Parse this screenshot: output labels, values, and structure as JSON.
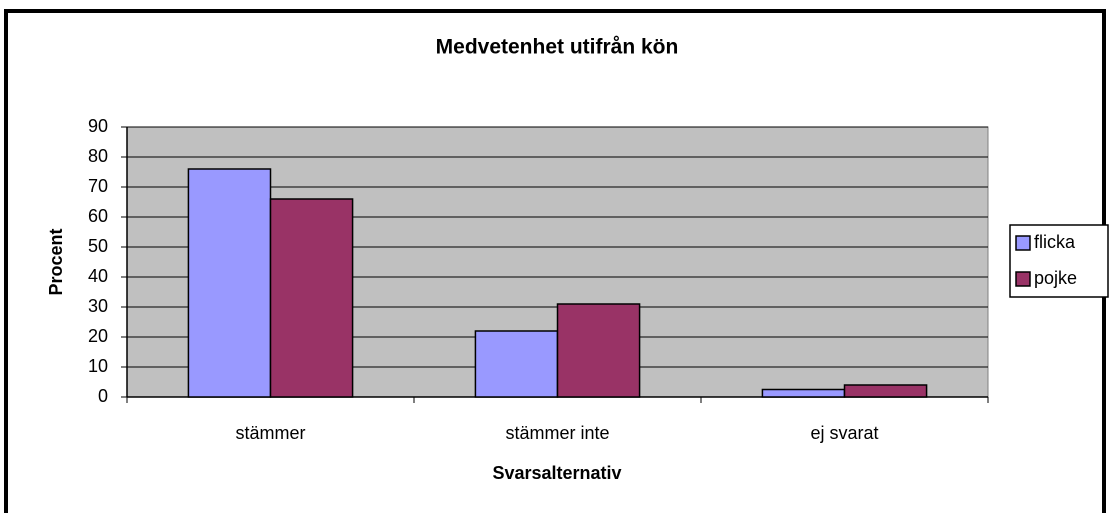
{
  "chart_data": {
    "type": "bar",
    "title": "Medvetenhet utifrån kön",
    "x_label": "Svarsalternativ",
    "y_label": "Procent",
    "categories": [
      "stämmer",
      "stämmer inte",
      "ej svarat"
    ],
    "series": [
      {
        "name": "flicka",
        "color": "#9999ff",
        "values": [
          76,
          22,
          2.5
        ]
      },
      {
        "name": "pojke",
        "color": "#993366",
        "values": [
          66,
          31,
          4
        ]
      }
    ],
    "ylim": [
      0,
      90
    ],
    "yticks": [
      0,
      10,
      20,
      30,
      40,
      50,
      60,
      70,
      80,
      90
    ],
    "grid": true,
    "legend": "right",
    "plot_background": "#c0c0c0"
  }
}
